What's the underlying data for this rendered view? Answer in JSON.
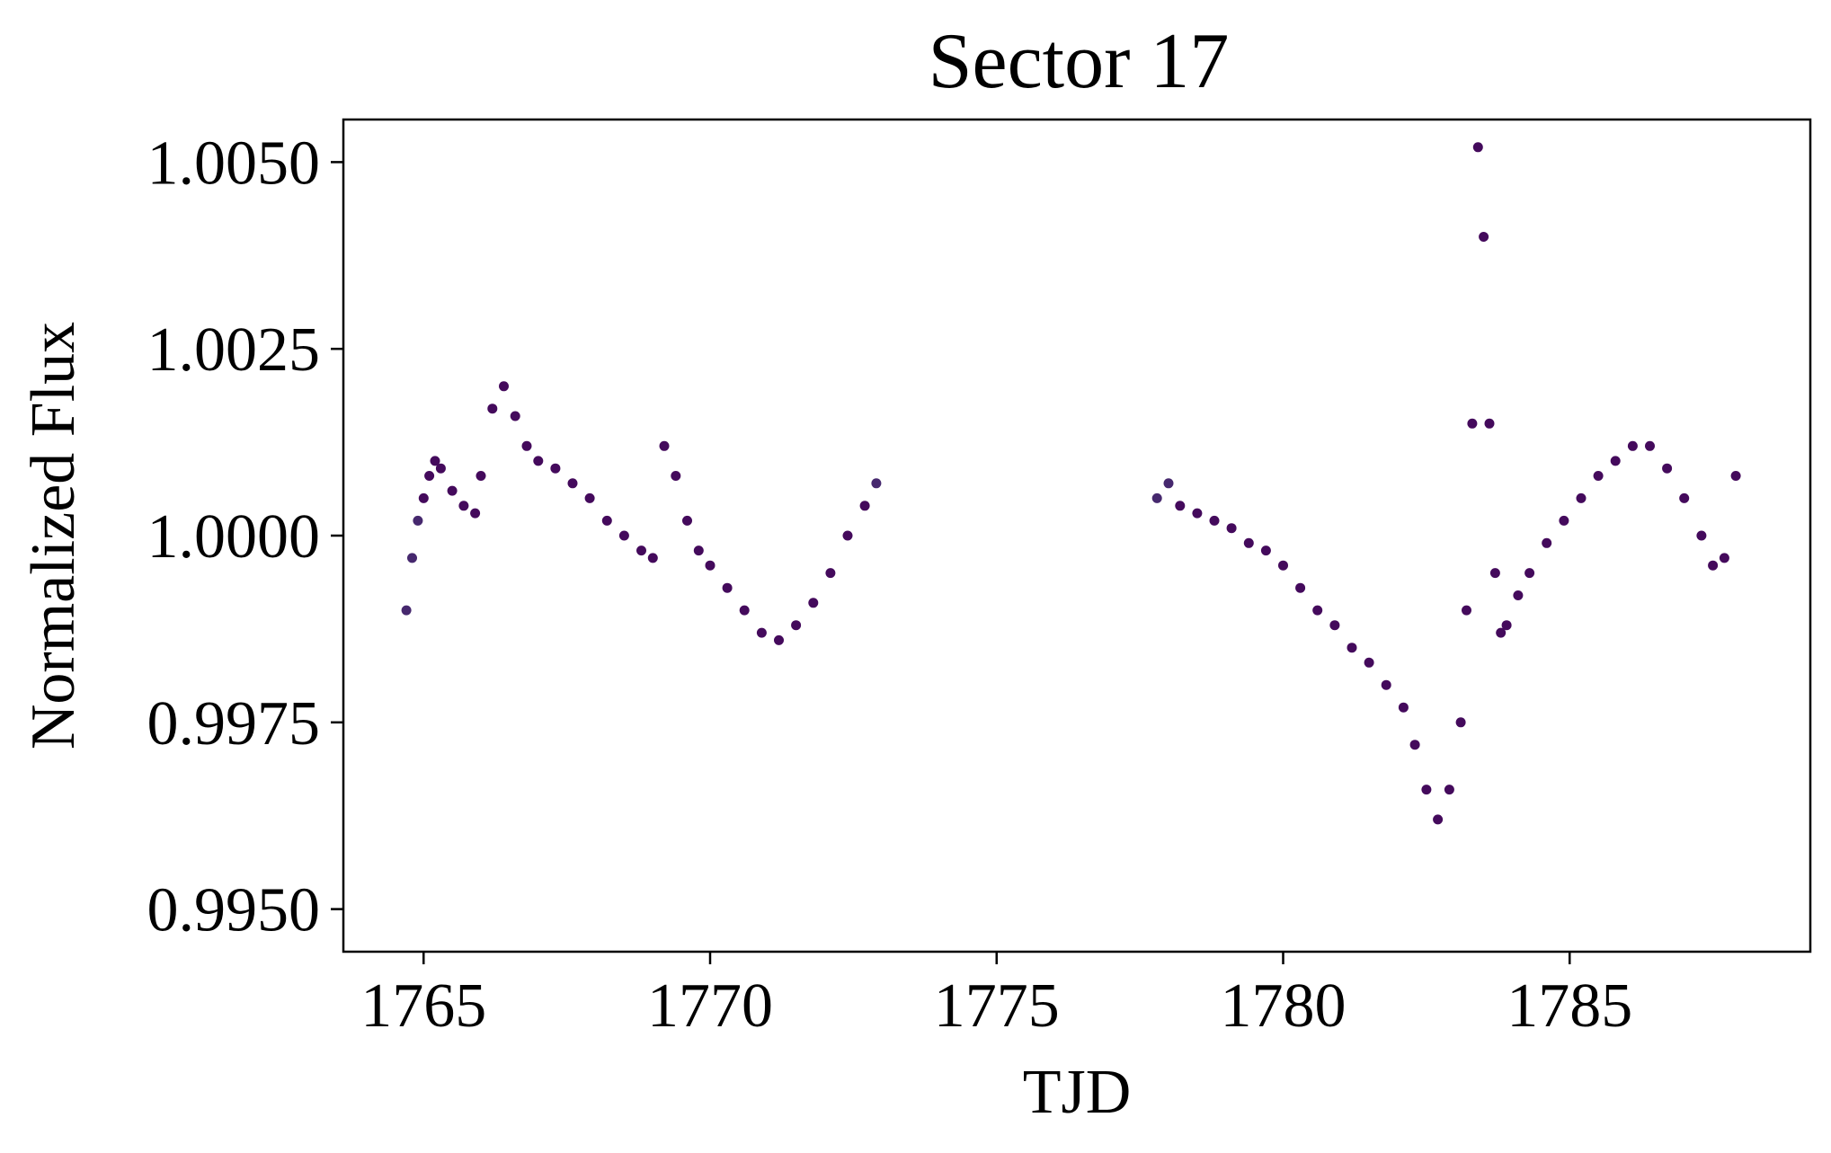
{
  "chart_data": {
    "type": "scatter",
    "title": "Sector 17",
    "xlabel": "TJD",
    "ylabel": "Normalized Flux",
    "xlim": [
      1763.6,
      1789.2
    ],
    "ylim": [
      0.99443,
      1.00557
    ],
    "xticks": [
      1765,
      1770,
      1775,
      1780,
      1785
    ],
    "xtick_labels": [
      "1765",
      "1770",
      "1775",
      "1780",
      "1785"
    ],
    "yticks": [
      0.995,
      0.9975,
      1.0,
      1.0025,
      1.005
    ],
    "ytick_labels": [
      "0.9950",
      "0.9975",
      "1.0000",
      "1.0025",
      "1.0050"
    ],
    "grid": false,
    "legend": "none",
    "colors": {
      "points": "#440a5c",
      "points_alt": "#46286e"
    },
    "series": [
      {
        "x": [
          1764.7,
          1764.8,
          1764.9,
          1765.0,
          1765.1,
          1765.2,
          1765.3,
          1765.5,
          1765.7,
          1765.9,
          1766.0,
          1766.2,
          1766.4,
          1766.6,
          1766.8,
          1767.0,
          1767.3,
          1767.6,
          1767.9,
          1768.2,
          1768.5,
          1768.8,
          1769.0,
          1769.2,
          1769.4,
          1769.6,
          1769.8,
          1770.0,
          1770.3,
          1770.6,
          1770.9,
          1771.2,
          1771.5,
          1771.8,
          1772.1,
          1772.4,
          1772.7,
          1772.9
        ],
        "y": [
          0.999,
          0.9997,
          1.0002,
          1.0005,
          1.0008,
          1.001,
          1.0009,
          1.0006,
          1.0004,
          1.0003,
          1.0008,
          1.0017,
          1.002,
          1.0016,
          1.0012,
          1.001,
          1.0009,
          1.0007,
          1.0005,
          1.0002,
          1.0,
          0.9998,
          0.9997,
          1.0012,
          1.0008,
          1.0002,
          0.9998,
          0.9996,
          0.9993,
          0.999,
          0.9987,
          0.9986,
          0.9988,
          0.9991,
          0.9995,
          1.0,
          1.0004,
          1.0007
        ]
      },
      {
        "x": [
          1777.8,
          1778.0,
          1778.2,
          1778.5,
          1778.8,
          1779.1,
          1779.4,
          1779.7,
          1780.0,
          1780.3,
          1780.6,
          1780.9,
          1781.2,
          1781.5,
          1781.8,
          1782.1,
          1782.3,
          1782.5,
          1782.7,
          1782.9,
          1783.1,
          1783.2,
          1783.3,
          1783.4,
          1783.5,
          1783.6,
          1783.7,
          1783.8,
          1783.9,
          1784.1,
          1784.3,
          1784.6,
          1784.9,
          1785.2,
          1785.5,
          1785.8,
          1786.1,
          1786.4,
          1786.7,
          1787.0,
          1787.3,
          1787.5,
          1787.7,
          1787.9
        ],
        "y": [
          1.0005,
          1.0007,
          1.0004,
          1.0003,
          1.0002,
          1.0001,
          0.9999,
          0.9998,
          0.9996,
          0.9993,
          0.999,
          0.9988,
          0.9985,
          0.9983,
          0.998,
          0.9977,
          0.9972,
          0.9966,
          0.9962,
          0.9966,
          0.9975,
          0.999,
          1.0015,
          1.0052,
          1.004,
          1.0015,
          0.9995,
          0.9987,
          0.9988,
          0.9992,
          0.9995,
          0.9999,
          1.0002,
          1.0005,
          1.0008,
          1.001,
          1.0012,
          1.0012,
          1.0009,
          1.0005,
          1.0,
          0.9996,
          0.9997,
          1.0008
        ]
      }
    ]
  }
}
